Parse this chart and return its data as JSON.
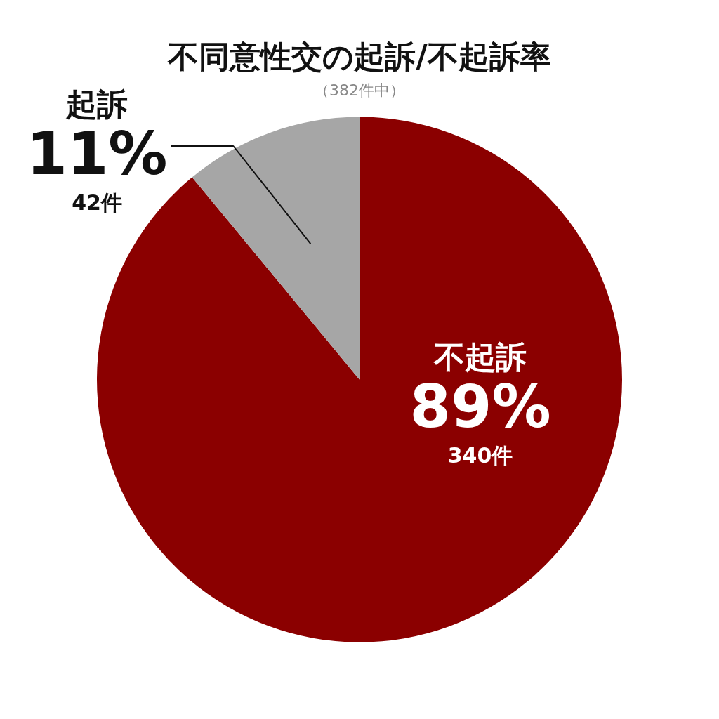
{
  "chart_data": {
    "type": "pie",
    "title": "不同意性交の起訴/不起訴率",
    "subtitle": "（382件中）",
    "categories": [
      "不起訴",
      "起訴"
    ],
    "values": [
      89,
      11
    ],
    "colors": [
      "#8b0000",
      "#a6a6a6"
    ],
    "value_labels": [
      "89%",
      "11%"
    ],
    "annotations": [
      "340件",
      "42件"
    ],
    "legend": false
  }
}
